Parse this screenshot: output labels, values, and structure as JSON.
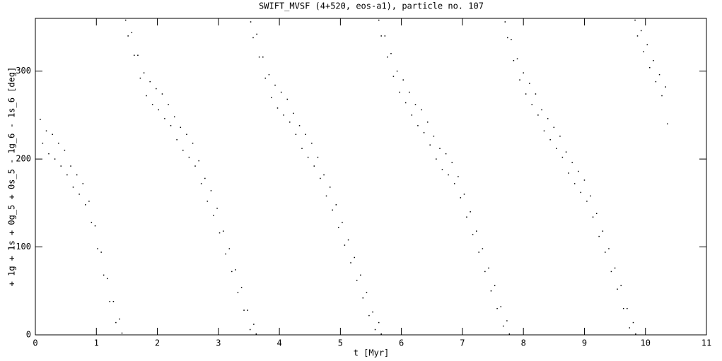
{
  "chart_data": {
    "type": "scatter",
    "title": "SWIFT_MVSF (4+520, eos-a1), particle no. 107",
    "x_label": "t [Myr]",
    "y_label": "+ 1g + 1s + 0g_5 + 0s_5 - 1g_6 - 1s_6 [deg]",
    "xlim": [
      0,
      11
    ],
    "ylim": [
      0,
      360
    ],
    "xticks": [
      0,
      1,
      2,
      3,
      4,
      5,
      6,
      7,
      8,
      9,
      10,
      11
    ],
    "yticks": [
      0,
      100,
      200,
      300
    ],
    "color": "#000000",
    "x": [
      0.08,
      0.12,
      0.18,
      0.22,
      0.28,
      0.32,
      0.38,
      0.42,
      0.48,
      0.52,
      0.58,
      0.62,
      0.68,
      0.72,
      0.78,
      0.82,
      0.88,
      0.92,
      0.98,
      1.02,
      1.08,
      1.12,
      1.18,
      1.22,
      1.28,
      1.32,
      1.38,
      1.42,
      1.48,
      1.52,
      1.58,
      1.62,
      1.68,
      1.72,
      1.78,
      1.82,
      1.88,
      1.92,
      1.98,
      2.02,
      2.08,
      2.12,
      2.18,
      2.22,
      2.28,
      2.32,
      2.38,
      2.42,
      2.48,
      2.52,
      2.58,
      2.62,
      2.68,
      2.72,
      2.78,
      2.82,
      2.88,
      2.92,
      2.98,
      3.02,
      3.08,
      3.12,
      3.18,
      3.22,
      3.28,
      3.32,
      3.38,
      3.42,
      3.48,
      3.52,
      3.58,
      3.62,
      3.53,
      3.57,
      3.63,
      3.67,
      3.73,
      3.77,
      3.83,
      3.87,
      3.93,
      3.97,
      4.03,
      4.07,
      4.13,
      4.17,
      4.23,
      4.27,
      4.33,
      4.37,
      4.43,
      4.47,
      4.53,
      4.57,
      4.63,
      4.67,
      4.73,
      4.77,
      4.83,
      4.87,
      4.93,
      4.97,
      5.03,
      5.07,
      5.13,
      5.17,
      5.23,
      5.27,
      5.33,
      5.37,
      5.43,
      5.47,
      5.53,
      5.57,
      5.63,
      5.67,
      5.63,
      5.67,
      5.73,
      5.77,
      5.83,
      5.87,
      5.93,
      5.97,
      6.03,
      6.07,
      6.13,
      6.17,
      6.23,
      6.27,
      6.33,
      6.37,
      6.43,
      6.47,
      6.53,
      6.57,
      6.63,
      6.67,
      6.73,
      6.77,
      6.83,
      6.87,
      6.93,
      6.97,
      7.03,
      7.07,
      7.13,
      7.17,
      7.23,
      7.27,
      7.33,
      7.37,
      7.43,
      7.47,
      7.53,
      7.57,
      7.63,
      7.67,
      7.73,
      7.77,
      7.7,
      7.74,
      7.8,
      7.84,
      7.9,
      7.94,
      8.0,
      8.04,
      8.1,
      8.14,
      8.2,
      8.24,
      8.3,
      8.34,
      8.4,
      8.44,
      8.5,
      8.54,
      8.6,
      8.64,
      8.7,
      8.74,
      8.8,
      8.84,
      8.9,
      8.94,
      9.0,
      9.04,
      9.1,
      9.14,
      9.2,
      9.24,
      9.3,
      9.34,
      9.4,
      9.44,
      9.5,
      9.54,
      9.6,
      9.64,
      9.7,
      9.74,
      9.8,
      9.84,
      9.83,
      9.87,
      9.93,
      9.97,
      10.03,
      10.07,
      10.13,
      10.17,
      10.23,
      10.27,
      10.33,
      10.36
    ],
    "y": [
      245,
      218,
      232,
      206,
      228,
      200,
      218,
      192,
      210,
      182,
      192,
      168,
      182,
      160,
      172,
      148,
      152,
      128,
      124,
      98,
      94,
      68,
      64,
      38,
      38,
      14,
      18,
      2,
      358,
      340,
      344,
      318,
      318,
      292,
      298,
      272,
      288,
      262,
      280,
      256,
      274,
      246,
      262,
      238,
      248,
      222,
      236,
      210,
      228,
      202,
      218,
      192,
      198,
      172,
      178,
      152,
      164,
      136,
      144,
      116,
      118,
      92,
      98,
      72,
      74,
      48,
      54,
      28,
      28,
      6,
      12,
      1,
      356,
      338,
      342,
      316,
      316,
      292,
      296,
      270,
      284,
      258,
      276,
      250,
      268,
      242,
      252,
      228,
      238,
      212,
      228,
      202,
      218,
      192,
      202,
      178,
      182,
      158,
      168,
      142,
      148,
      122,
      128,
      102,
      108,
      82,
      88,
      62,
      68,
      42,
      48,
      22,
      26,
      6,
      14,
      1,
      358,
      340,
      340,
      316,
      320,
      294,
      300,
      276,
      290,
      264,
      276,
      250,
      262,
      238,
      256,
      230,
      242,
      216,
      226,
      200,
      212,
      188,
      206,
      182,
      196,
      172,
      180,
      156,
      160,
      134,
      140,
      114,
      118,
      94,
      98,
      72,
      76,
      50,
      56,
      30,
      32,
      10,
      16,
      1,
      356,
      338,
      336,
      312,
      314,
      290,
      298,
      274,
      286,
      262,
      274,
      250,
      256,
      232,
      246,
      222,
      236,
      212,
      226,
      202,
      208,
      184,
      196,
      172,
      186,
      162,
      176,
      152,
      158,
      134,
      138,
      112,
      118,
      94,
      98,
      72,
      76,
      52,
      56,
      30,
      30,
      8,
      14,
      1,
      358,
      340,
      346,
      322,
      330,
      304,
      312,
      288,
      296,
      272,
      282,
      240
    ]
  }
}
